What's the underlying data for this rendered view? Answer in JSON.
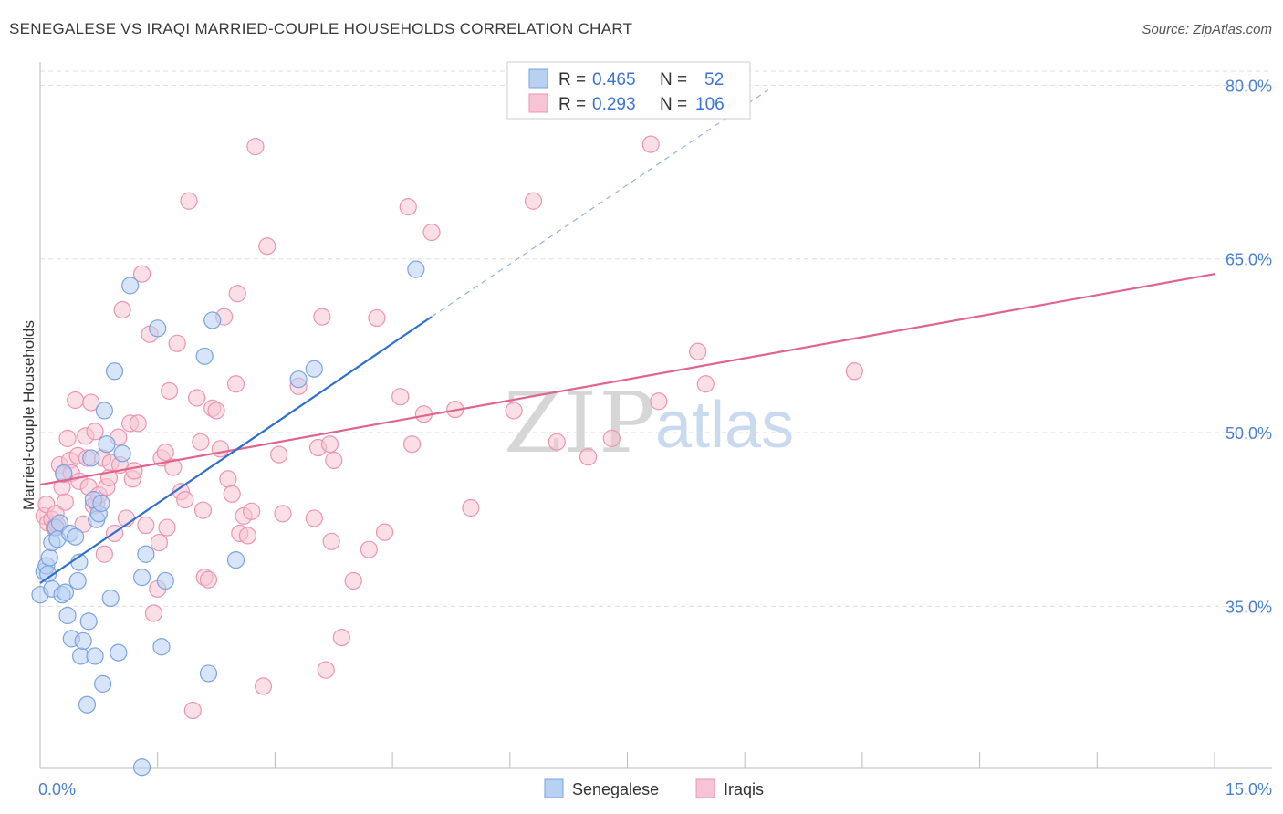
{
  "title": "SENEGALESE VS IRAQI MARRIED-COUPLE HOUSEHOLDS CORRELATION CHART",
  "source": "Source: ZipAtlas.com",
  "watermark": {
    "zip": "ZIP",
    "atlas": "atlas"
  },
  "colors": {
    "blue_fill": "#b8d0f2",
    "blue_stroke": "#7aa3e0",
    "blue_line": "#2f6fcf",
    "pink_fill": "#f6c4d4",
    "pink_stroke": "#ec94b1",
    "pink_line": "#e0648e",
    "tick": "#4a7fd4",
    "grid": "#dddddd"
  },
  "legend": {
    "rows": [
      {
        "r_label": "R =",
        "r_value": "0.465",
        "n_label": "N =",
        "n_value": "52"
      },
      {
        "r_label": "R =",
        "r_value": "0.293",
        "n_label": "N =",
        "n_value": "106"
      }
    ]
  },
  "bottom_legend": [
    "Senegalese",
    "Iraqis"
  ],
  "chart_data": {
    "type": "scatter",
    "title": "SENEGALESE VS IRAQI MARRIED-COUPLE HOUSEHOLDS CORRELATION CHART",
    "xlabel": "",
    "ylabel": "Married-couple Households",
    "xlim": [
      0,
      15
    ],
    "ylim": [
      21,
      82
    ],
    "x_tick_labels": [
      "0.0%",
      "15.0%"
    ],
    "y_ticks": [
      35,
      50,
      65,
      80
    ],
    "y_tick_labels": [
      "35.0%",
      "50.0%",
      "65.0%",
      "80.0%"
    ],
    "grid": true,
    "series": [
      {
        "name": "Senegalese",
        "R": 0.465,
        "N": 52,
        "trend": {
          "x0": 0.0,
          "y0": 37.0,
          "x1": 5.0,
          "y1": 60.0,
          "dash_to_x": 9.3,
          "dash_to_y": 79.6
        },
        "points": [
          [
            0.0,
            36.0
          ],
          [
            0.05,
            38.0
          ],
          [
            0.08,
            38.5
          ],
          [
            0.1,
            37.8
          ],
          [
            0.12,
            39.2
          ],
          [
            0.15,
            36.5
          ],
          [
            0.15,
            40.5
          ],
          [
            0.2,
            41.8
          ],
          [
            0.22,
            40.8
          ],
          [
            0.25,
            42.2
          ],
          [
            0.28,
            36.0
          ],
          [
            0.3,
            46.5
          ],
          [
            0.32,
            36.2
          ],
          [
            0.35,
            34.2
          ],
          [
            0.38,
            41.3
          ],
          [
            0.4,
            32.2
          ],
          [
            0.45,
            41.0
          ],
          [
            0.48,
            37.2
          ],
          [
            0.5,
            38.8
          ],
          [
            0.52,
            30.7
          ],
          [
            0.55,
            32.0
          ],
          [
            0.6,
            26.5
          ],
          [
            0.62,
            33.7
          ],
          [
            0.65,
            47.8
          ],
          [
            0.68,
            44.2
          ],
          [
            0.7,
            30.7
          ],
          [
            0.72,
            42.5
          ],
          [
            0.75,
            43.0
          ],
          [
            0.78,
            43.9
          ],
          [
            0.8,
            28.3
          ],
          [
            0.82,
            51.9
          ],
          [
            0.85,
            49.0
          ],
          [
            0.9,
            35.7
          ],
          [
            0.95,
            55.3
          ],
          [
            1.0,
            31.0
          ],
          [
            1.05,
            48.2
          ],
          [
            1.15,
            62.7
          ],
          [
            1.3,
            21.1
          ],
          [
            1.3,
            37.5
          ],
          [
            1.35,
            39.5
          ],
          [
            1.5,
            59.0
          ],
          [
            1.55,
            31.5
          ],
          [
            1.6,
            37.2
          ],
          [
            2.1,
            56.6
          ],
          [
            2.15,
            29.2
          ],
          [
            2.2,
            59.7
          ],
          [
            2.5,
            39.0
          ],
          [
            3.3,
            54.6
          ],
          [
            3.5,
            55.5
          ],
          [
            4.8,
            64.1
          ]
        ]
      },
      {
        "name": "Iraqis",
        "R": 0.293,
        "N": 106,
        "trend": {
          "x0": 0.0,
          "y0": 45.5,
          "x1": 15.0,
          "y1": 63.7
        },
        "points": [
          [
            0.05,
            42.8
          ],
          [
            0.08,
            43.8
          ],
          [
            0.1,
            42.2
          ],
          [
            0.15,
            42.5
          ],
          [
            0.18,
            41.8
          ],
          [
            0.2,
            43.0
          ],
          [
            0.22,
            42.0
          ],
          [
            0.25,
            47.2
          ],
          [
            0.28,
            45.3
          ],
          [
            0.3,
            46.4
          ],
          [
            0.32,
            44.0
          ],
          [
            0.35,
            49.5
          ],
          [
            0.38,
            47.6
          ],
          [
            0.4,
            46.5
          ],
          [
            0.45,
            52.8
          ],
          [
            0.48,
            48.0
          ],
          [
            0.5,
            45.8
          ],
          [
            0.55,
            42.1
          ],
          [
            0.58,
            49.7
          ],
          [
            0.6,
            47.8
          ],
          [
            0.62,
            45.3
          ],
          [
            0.65,
            52.6
          ],
          [
            0.68,
            43.7
          ],
          [
            0.7,
            50.1
          ],
          [
            0.72,
            43.9
          ],
          [
            0.75,
            44.6
          ],
          [
            0.8,
            47.8
          ],
          [
            0.82,
            39.5
          ],
          [
            0.85,
            45.3
          ],
          [
            0.88,
            46.1
          ],
          [
            0.9,
            47.4
          ],
          [
            0.95,
            41.3
          ],
          [
            1.0,
            49.6
          ],
          [
            1.02,
            47.2
          ],
          [
            1.05,
            60.6
          ],
          [
            1.1,
            42.6
          ],
          [
            1.15,
            50.8
          ],
          [
            1.18,
            46.0
          ],
          [
            1.2,
            46.7
          ],
          [
            1.25,
            50.8
          ],
          [
            1.3,
            63.7
          ],
          [
            1.35,
            42.0
          ],
          [
            1.4,
            58.5
          ],
          [
            1.45,
            34.4
          ],
          [
            1.5,
            36.5
          ],
          [
            1.52,
            40.5
          ],
          [
            1.55,
            47.8
          ],
          [
            1.6,
            48.3
          ],
          [
            1.62,
            41.8
          ],
          [
            1.65,
            53.6
          ],
          [
            1.7,
            47.0
          ],
          [
            1.75,
            57.7
          ],
          [
            1.8,
            44.9
          ],
          [
            1.85,
            44.2
          ],
          [
            1.9,
            70.0
          ],
          [
            1.95,
            26.0
          ],
          [
            2.0,
            53.0
          ],
          [
            2.05,
            49.2
          ],
          [
            2.08,
            43.3
          ],
          [
            2.1,
            37.5
          ],
          [
            2.15,
            37.3
          ],
          [
            2.2,
            52.1
          ],
          [
            2.25,
            51.9
          ],
          [
            2.3,
            48.6
          ],
          [
            2.35,
            60.0
          ],
          [
            2.4,
            46.0
          ],
          [
            2.45,
            44.7
          ],
          [
            2.5,
            54.2
          ],
          [
            2.52,
            62.0
          ],
          [
            2.55,
            41.3
          ],
          [
            2.6,
            42.8
          ],
          [
            2.65,
            41.1
          ],
          [
            2.7,
            43.2
          ],
          [
            2.75,
            74.7
          ],
          [
            2.85,
            28.1
          ],
          [
            2.9,
            66.1
          ],
          [
            3.05,
            48.1
          ],
          [
            3.1,
            43.0
          ],
          [
            3.3,
            54.0
          ],
          [
            3.5,
            42.6
          ],
          [
            3.55,
            48.7
          ],
          [
            3.6,
            60.0
          ],
          [
            3.65,
            29.5
          ],
          [
            3.7,
            49.0
          ],
          [
            3.72,
            40.6
          ],
          [
            3.75,
            47.6
          ],
          [
            3.85,
            32.3
          ],
          [
            4.0,
            37.2
          ],
          [
            4.2,
            39.9
          ],
          [
            4.3,
            59.9
          ],
          [
            4.4,
            41.4
          ],
          [
            4.6,
            53.1
          ],
          [
            4.7,
            69.5
          ],
          [
            4.75,
            49.0
          ],
          [
            4.9,
            51.6
          ],
          [
            5.0,
            67.3
          ],
          [
            5.3,
            52.0
          ],
          [
            5.5,
            43.5
          ],
          [
            6.05,
            51.9
          ],
          [
            6.3,
            70.0
          ],
          [
            6.6,
            49.2
          ],
          [
            7.0,
            47.9
          ],
          [
            7.3,
            49.5
          ],
          [
            7.8,
            74.9
          ],
          [
            7.9,
            52.7
          ],
          [
            8.4,
            57.0
          ],
          [
            8.5,
            54.2
          ],
          [
            10.4,
            55.3
          ]
        ]
      }
    ]
  }
}
